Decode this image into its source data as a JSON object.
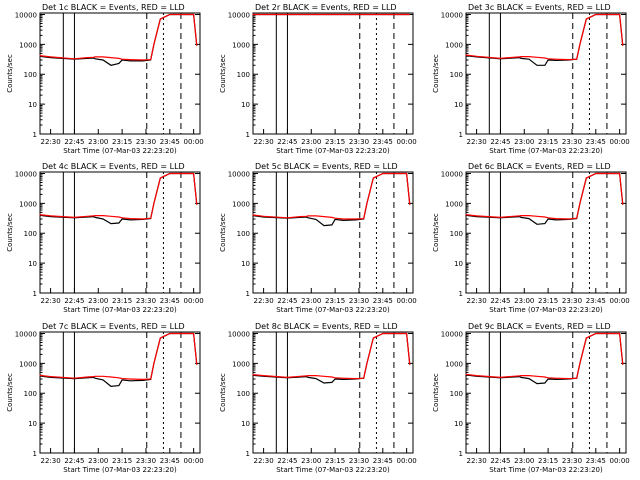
{
  "colors": {
    "events": "#000000",
    "lld": "#ff0000",
    "background": "#ffffff",
    "axes": "#000000"
  },
  "legend_text": "BLACK = Events, RED = LLD",
  "xlabel": "Start Time (07-Mar-03 22:23:20)",
  "ylabel": "Counts/sec",
  "x_tick_labels": [
    "22:30",
    "22:45",
    "23:00",
    "23:15",
    "23:30",
    "23:45",
    "00:00"
  ],
  "y_tick_labels": [
    "1",
    "10",
    "100",
    "1000",
    "10000"
  ],
  "chart_data": [
    {
      "type": "line",
      "title_left": "Det 1c",
      "title_right": "BLACK = Events, RED = LLD",
      "markers": {
        "E": "22:23:20",
        "F": "22:38:00",
        "S": "23:30:30",
        "E2": "23:41:00"
      },
      "x": [
        "22:23",
        "22:30",
        "22:45",
        "22:53",
        "22:57",
        "22:58",
        "23:03",
        "23:08",
        "23:13",
        "23:15",
        "23:20",
        "23:28",
        "23:33",
        "23:35",
        "23:39",
        "23:45",
        "23:52",
        "23:56",
        "23:58",
        "00:00",
        "00:02"
      ],
      "series": [
        {
          "name": "Events",
          "values": [
            400,
            360,
            320,
            340,
            350,
            330,
            300,
            200,
            230,
            300,
            280,
            280,
            300,
            1000,
            7000,
            10000,
            10000,
            10000,
            10000,
            10000,
            900
          ]
        },
        {
          "name": "LLD",
          "values": [
            420,
            380,
            330,
            360,
            370,
            380,
            380,
            360,
            340,
            320,
            310,
            300,
            310,
            1000,
            7000,
            10000,
            10000,
            10000,
            10000,
            10000,
            900
          ]
        }
      ],
      "ylim": [
        1,
        10000
      ],
      "yscale": "log"
    },
    {
      "type": "line",
      "title_left": "Det 2r",
      "title_right": "BLACK = Events, RED = LLD",
      "markers": {
        "E": "22:23:20",
        "F": "22:38:00",
        "S": "23:30:30",
        "E2": "23:41:00"
      },
      "x": [
        "22:23",
        "22:30",
        "22:45",
        "22:53",
        "22:57",
        "22:58",
        "23:03",
        "23:08",
        "23:13",
        "23:15",
        "23:20",
        "23:28",
        "23:33",
        "23:35",
        "23:39",
        "23:45",
        "23:52",
        "23:56",
        "23:58",
        "00:00",
        "00:02"
      ],
      "series": [
        {
          "name": "Events",
          "values": [
            10000,
            10000,
            10000,
            10000,
            10000,
            10000,
            10000,
            10000,
            10000,
            10000,
            10000,
            10000,
            10000,
            10000,
            10000,
            10000,
            10000,
            10000,
            10000,
            10000,
            10000
          ]
        },
        {
          "name": "LLD",
          "values": [
            10000,
            10000,
            10000,
            10000,
            10000,
            10000,
            10000,
            10000,
            10000,
            10000,
            10000,
            10000,
            10000,
            10000,
            10000,
            10000,
            10000,
            10000,
            10000,
            10000,
            10000
          ]
        }
      ],
      "ylim": [
        1,
        10000
      ],
      "yscale": "log"
    },
    {
      "type": "line",
      "title_left": "Det 3c",
      "title_right": "BLACK = Events, RED = LLD",
      "markers": {
        "E": "22:23:20",
        "F": "22:38:00",
        "S": "23:30:30",
        "E2": "23:41:00"
      },
      "x": [
        "22:23",
        "22:30",
        "22:45",
        "22:53",
        "22:57",
        "22:58",
        "23:03",
        "23:08",
        "23:13",
        "23:15",
        "23:20",
        "23:28",
        "23:33",
        "23:35",
        "23:39",
        "23:45",
        "23:52",
        "23:56",
        "23:58",
        "00:00",
        "00:02"
      ],
      "series": [
        {
          "name": "Events",
          "values": [
            420,
            380,
            330,
            350,
            360,
            340,
            320,
            200,
            200,
            300,
            290,
            300,
            320,
            1000,
            7000,
            10000,
            10000,
            10000,
            10000,
            10000,
            900
          ]
        },
        {
          "name": "LLD",
          "values": [
            440,
            400,
            340,
            370,
            380,
            390,
            390,
            370,
            350,
            330,
            320,
            310,
            320,
            1000,
            7000,
            10000,
            10000,
            10000,
            10000,
            10000,
            900
          ]
        }
      ],
      "ylim": [
        1,
        10000
      ],
      "yscale": "log"
    },
    {
      "type": "line",
      "title_left": "Det 4c",
      "title_right": "BLACK = Events, RED = LLD",
      "markers": {
        "E": "22:23:20",
        "F": "22:38:00",
        "S": "23:30:30",
        "E2": "23:41:00"
      },
      "x": [
        "22:23",
        "22:30",
        "22:45",
        "22:53",
        "22:57",
        "22:58",
        "23:03",
        "23:08",
        "23:13",
        "23:15",
        "23:20",
        "23:28",
        "23:33",
        "23:35",
        "23:39",
        "23:45",
        "23:52",
        "23:56",
        "23:58",
        "00:00",
        "00:02"
      ],
      "series": [
        {
          "name": "Events",
          "values": [
            400,
            360,
            330,
            350,
            360,
            340,
            300,
            210,
            220,
            300,
            280,
            290,
            310,
            1000,
            7000,
            10000,
            10000,
            10000,
            10000,
            10000,
            900
          ]
        },
        {
          "name": "LLD",
          "values": [
            420,
            380,
            340,
            370,
            380,
            390,
            390,
            370,
            350,
            330,
            310,
            300,
            320,
            1000,
            7000,
            10000,
            10000,
            10000,
            10000,
            10000,
            900
          ]
        }
      ],
      "ylim": [
        1,
        10000
      ],
      "yscale": "log"
    },
    {
      "type": "line",
      "title_left": "Det 5c",
      "title_right": "BLACK = Events, RED = LLD",
      "markers": {
        "E": "22:23:20",
        "F": "22:38:00",
        "S": "23:30:30",
        "E2": "23:41:00"
      },
      "x": [
        "22:23",
        "22:30",
        "22:45",
        "22:53",
        "22:57",
        "22:58",
        "23:03",
        "23:08",
        "23:13",
        "23:15",
        "23:20",
        "23:28",
        "23:33",
        "23:35",
        "23:39",
        "23:45",
        "23:52",
        "23:56",
        "23:58",
        "00:00",
        "00:02"
      ],
      "series": [
        {
          "name": "Events",
          "values": [
            390,
            350,
            320,
            340,
            350,
            330,
            290,
            180,
            190,
            290,
            270,
            280,
            300,
            1000,
            7000,
            10000,
            10000,
            10000,
            10000,
            10000,
            900
          ]
        },
        {
          "name": "LLD",
          "values": [
            410,
            370,
            330,
            360,
            370,
            380,
            380,
            360,
            340,
            320,
            300,
            300,
            310,
            1000,
            7000,
            10000,
            10000,
            10000,
            10000,
            10000,
            900
          ]
        }
      ],
      "ylim": [
        1,
        10000
      ],
      "yscale": "log"
    },
    {
      "type": "line",
      "title_left": "Det 6c",
      "title_right": "BLACK = Events, RED = LLD",
      "markers": {
        "E": "22:23:20",
        "F": "22:38:00",
        "S": "23:30:30",
        "E2": "23:41:00"
      },
      "x": [
        "22:23",
        "22:30",
        "22:45",
        "22:53",
        "22:57",
        "22:58",
        "23:03",
        "23:08",
        "23:13",
        "23:15",
        "23:20",
        "23:28",
        "23:33",
        "23:35",
        "23:39",
        "23:45",
        "23:52",
        "23:56",
        "23:58",
        "00:00",
        "00:02"
      ],
      "series": [
        {
          "name": "Events",
          "values": [
            400,
            360,
            330,
            350,
            360,
            340,
            310,
            200,
            210,
            300,
            280,
            290,
            310,
            1000,
            7000,
            10000,
            10000,
            10000,
            10000,
            10000,
            900
          ]
        },
        {
          "name": "LLD",
          "values": [
            420,
            380,
            340,
            370,
            380,
            390,
            390,
            370,
            350,
            330,
            310,
            300,
            320,
            1000,
            7000,
            10000,
            10000,
            10000,
            10000,
            10000,
            900
          ]
        }
      ],
      "ylim": [
        1,
        10000
      ],
      "yscale": "log"
    },
    {
      "type": "line",
      "title_left": "Det 7c",
      "title_right": "BLACK = Events, RED = LLD",
      "markers": {
        "E": "22:23:20",
        "F": "22:38:00",
        "S": "23:30:30",
        "E2": "23:41:00"
      },
      "x": [
        "22:23",
        "22:30",
        "22:45",
        "22:53",
        "22:57",
        "22:58",
        "23:03",
        "23:08",
        "23:13",
        "23:15",
        "23:20",
        "23:28",
        "23:33",
        "23:35",
        "23:39",
        "23:45",
        "23:52",
        "23:56",
        "23:58",
        "00:00",
        "00:02"
      ],
      "series": [
        {
          "name": "Events",
          "values": [
            380,
            340,
            310,
            330,
            340,
            320,
            280,
            170,
            180,
            280,
            260,
            270,
            290,
            1000,
            7000,
            10000,
            10000,
            10000,
            10000,
            10000,
            900
          ]
        },
        {
          "name": "LLD",
          "values": [
            400,
            360,
            320,
            350,
            360,
            370,
            370,
            350,
            330,
            310,
            300,
            290,
            300,
            1000,
            7000,
            10000,
            10000,
            10000,
            10000,
            10000,
            900
          ]
        }
      ],
      "ylim": [
        1,
        10000
      ],
      "yscale": "log"
    },
    {
      "type": "line",
      "title_left": "Det 8c",
      "title_right": "BLACK = Events, RED = LLD",
      "markers": {
        "E": "22:23:20",
        "F": "22:38:00",
        "S": "23:30:30",
        "E2": "23:41:00"
      },
      "x": [
        "22:23",
        "22:30",
        "22:45",
        "22:53",
        "22:57",
        "22:58",
        "23:03",
        "23:08",
        "23:13",
        "23:15",
        "23:20",
        "23:28",
        "23:33",
        "23:35",
        "23:39",
        "23:45",
        "23:52",
        "23:56",
        "23:58",
        "00:00",
        "00:02"
      ],
      "series": [
        {
          "name": "Events",
          "values": [
            400,
            370,
            330,
            350,
            360,
            340,
            310,
            220,
            230,
            300,
            290,
            300,
            320,
            1000,
            7000,
            10000,
            10000,
            10000,
            10000,
            10000,
            900
          ]
        },
        {
          "name": "LLD",
          "values": [
            420,
            390,
            340,
            370,
            380,
            390,
            390,
            370,
            350,
            330,
            320,
            310,
            320,
            1000,
            7000,
            10000,
            10000,
            10000,
            10000,
            10000,
            900
          ]
        }
      ],
      "ylim": [
        1,
        10000
      ],
      "yscale": "log"
    },
    {
      "type": "line",
      "title_left": "Det 9c",
      "title_right": "BLACK = Events, RED = LLD",
      "markers": {
        "E": "22:23:20",
        "F": "22:38:00",
        "S": "23:30:30",
        "E2": "23:41:00"
      },
      "x": [
        "22:23",
        "22:30",
        "22:45",
        "22:53",
        "22:57",
        "22:58",
        "23:03",
        "23:08",
        "23:13",
        "23:15",
        "23:20",
        "23:28",
        "23:33",
        "23:35",
        "23:39",
        "23:45",
        "23:52",
        "23:56",
        "23:58",
        "00:00",
        "00:02"
      ],
      "series": [
        {
          "name": "Events",
          "values": [
            410,
            370,
            330,
            350,
            360,
            340,
            310,
            210,
            220,
            300,
            290,
            300,
            320,
            1000,
            7000,
            10000,
            10000,
            10000,
            10000,
            10000,
            900
          ]
        },
        {
          "name": "LLD",
          "values": [
            430,
            390,
            340,
            370,
            380,
            390,
            390,
            370,
            350,
            330,
            320,
            310,
            320,
            1000,
            7000,
            10000,
            10000,
            10000,
            10000,
            10000,
            900
          ]
        }
      ],
      "ylim": [
        1,
        10000
      ],
      "yscale": "log"
    }
  ]
}
